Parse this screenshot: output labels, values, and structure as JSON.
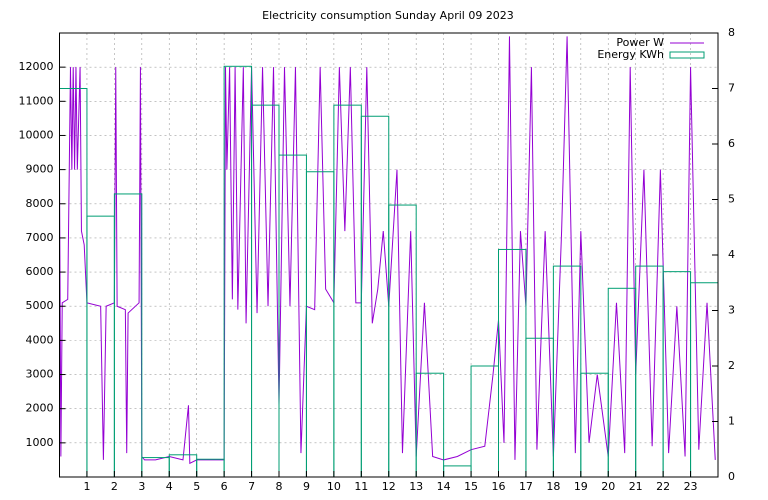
{
  "chart_data": {
    "type": "line",
    "title": "Electricity consumption Sunday April 09 2023",
    "xlim": [
      0,
      24
    ],
    "xticks": [
      1,
      2,
      3,
      4,
      5,
      6,
      7,
      8,
      9,
      10,
      11,
      12,
      13,
      14,
      15,
      16,
      17,
      18,
      19,
      20,
      21,
      22,
      23
    ],
    "ylim": [
      0,
      13000
    ],
    "yticks": [
      1000,
      2000,
      3000,
      4000,
      5000,
      6000,
      7000,
      8000,
      9000,
      10000,
      11000,
      12000
    ],
    "y2lim": [
      0,
      8
    ],
    "y2ticks": [
      0,
      1,
      2,
      3,
      4,
      5,
      6,
      7,
      8
    ],
    "grid": true,
    "legend": "top right",
    "series": [
      {
        "name": "Power W",
        "color": "#9400d3",
        "x": [
          0,
          0.05,
          0.1,
          0.3,
          0.4,
          0.45,
          0.5,
          0.55,
          0.6,
          0.65,
          0.75,
          0.8,
          0.9,
          1.0,
          1.5,
          1.6,
          1.7,
          2.0,
          2.05,
          2.1,
          2.4,
          2.45,
          2.5,
          2.9,
          2.95,
          3.0,
          3.1,
          3.5,
          4.0,
          4.5,
          4.7,
          4.75,
          5.0,
          5.5,
          6.0,
          6.05,
          6.1,
          6.2,
          6.3,
          6.4,
          6.5,
          6.7,
          6.8,
          7.0,
          7.2,
          7.4,
          7.6,
          7.8,
          8.0,
          8.2,
          8.4,
          8.6,
          8.8,
          9.0,
          9.3,
          9.5,
          9.7,
          10.0,
          10.2,
          10.4,
          10.6,
          10.8,
          11.0,
          11.2,
          11.4,
          11.6,
          11.8,
          12.0,
          12.3,
          12.5,
          12.8,
          13.0,
          13.3,
          13.6,
          14.0,
          14.5,
          15.0,
          15.5,
          15.8,
          16.0,
          16.2,
          16.4,
          16.6,
          16.8,
          17.0,
          17.2,
          17.4,
          17.7,
          18.0,
          18.3,
          18.5,
          18.8,
          19.0,
          19.3,
          19.6,
          20.0,
          20.3,
          20.6,
          20.8,
          21.0,
          21.3,
          21.6,
          21.9,
          22.2,
          22.5,
          22.8,
          23.0,
          23.3,
          23.6,
          23.9
        ],
        "values": [
          9000,
          600,
          5100,
          5200,
          12000,
          9000,
          12000,
          9000,
          12000,
          9000,
          12000,
          7200,
          6800,
          5100,
          5000,
          500,
          5000,
          5100,
          12000,
          5000,
          4900,
          700,
          4800,
          5100,
          12000,
          600,
          500,
          500,
          600,
          500,
          2100,
          400,
          500,
          500,
          500,
          12000,
          9000,
          12000,
          5200,
          12000,
          4900,
          12000,
          4500,
          12000,
          4800,
          12000,
          5000,
          12000,
          2100,
          12000,
          5000,
          12000,
          700,
          5000,
          4900,
          12000,
          5500,
          5100,
          12000,
          7200,
          12000,
          5100,
          5100,
          12000,
          4500,
          5500,
          7200,
          5000,
          9000,
          700,
          7200,
          600,
          5100,
          600,
          500,
          600,
          800,
          900,
          3000,
          4600,
          1000,
          12900,
          500,
          7200,
          5000,
          12000,
          800,
          7200,
          600,
          7200,
          12900,
          700,
          7200,
          1000,
          3000,
          600,
          5100,
          700,
          12000,
          3000,
          9000,
          900,
          9000,
          700,
          5000,
          600,
          12000,
          800,
          5100,
          500
        ]
      },
      {
        "name": "Energy KWh",
        "color": "#009e73",
        "axis": "y2",
        "type": "histogram",
        "bins": [
          0,
          1,
          2,
          3,
          4,
          5,
          6,
          7,
          8,
          9,
          10,
          11,
          12,
          13,
          14,
          15,
          16,
          17,
          18,
          19,
          20,
          21,
          22,
          23,
          24
        ],
        "values": [
          7.0,
          4.7,
          5.1,
          0.35,
          0.4,
          0.32,
          7.4,
          6.7,
          5.8,
          5.5,
          6.7,
          6.5,
          4.9,
          1.87,
          0.2,
          2.0,
          4.1,
          2.5,
          3.8,
          1.87,
          3.4,
          3.8,
          3.7,
          3.5
        ]
      }
    ]
  }
}
